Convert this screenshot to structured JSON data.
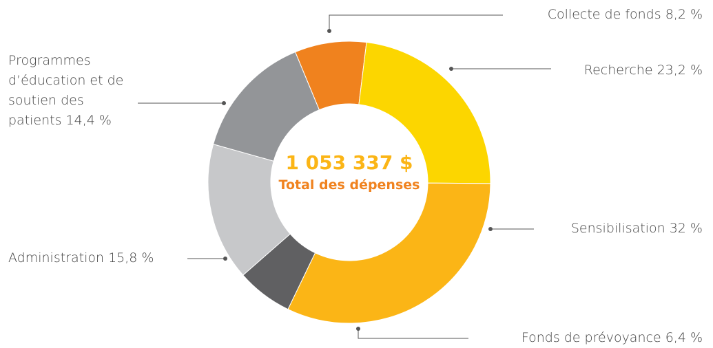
{
  "chart_data": {
    "type": "donut",
    "categories": [
      "Collecte de fonds",
      "Recherche",
      "Sensibilisation",
      "Fonds de prévoyance",
      "Administration",
      "Programmes d’éducation et de soutien des patients"
    ],
    "values": [
      8.2,
      23.2,
      32,
      6.4,
      15.8,
      14.4
    ],
    "value_labels": [
      "8,2 %",
      "23,2 %",
      "32 %",
      "6,4 %",
      "15,8 %",
      "14,4 %"
    ],
    "colors": [
      "#f0821e",
      "#fcd600",
      "#fbb516",
      "#606062",
      "#c7c8ca",
      "#939598"
    ],
    "center_value": "1 053 337 $",
    "center_label": "Total des dépenses"
  }
}
